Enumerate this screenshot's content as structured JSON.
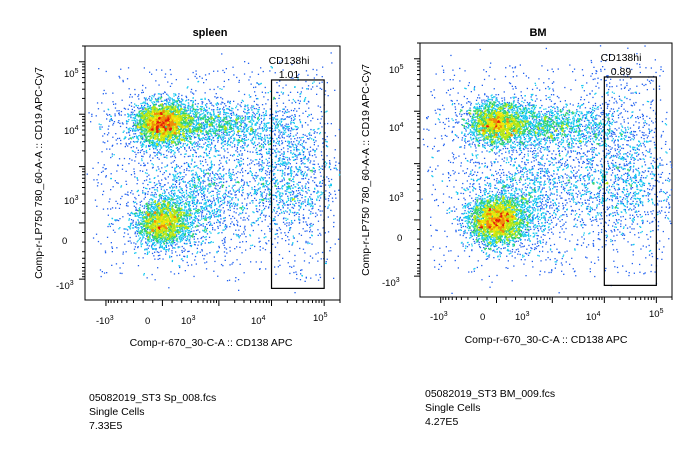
{
  "chart_data": [
    {
      "type": "scatter",
      "title": "spleen",
      "xlabel": "Comp-r-670_30-C-A :: CD138 APC",
      "ylabel": "Comp-r-LP750 780_60-A-A :: CD19 APC-Cy7",
      "x_scale": "biexponential",
      "y_scale": "biexponential",
      "x_ticks": [
        "-10³",
        "0",
        "10³",
        "10⁴",
        "10⁵"
      ],
      "y_ticks": [
        "10⁵",
        "10⁴",
        "10³",
        "0",
        "-10³"
      ],
      "density_colormap": [
        "#1a1adb",
        "#14c8f0",
        "#32d26e",
        "#f0e60a",
        "#e61a0a"
      ],
      "populations": [
        {
          "x": 0,
          "y": 7000,
          "density": "high"
        },
        {
          "x": 0,
          "y": 0,
          "density": "medium"
        },
        {
          "x": 20000,
          "y": 1500,
          "density": "low"
        }
      ],
      "gate": {
        "name": "CD138hi",
        "percent": "1.01",
        "x_range": [
          10000,
          100000
        ],
        "y_range": [
          -1500,
          45000
        ]
      },
      "file": "05082019_ST3 Sp_008.fcs",
      "population": "Single Cells",
      "count": "7.33E5"
    },
    {
      "type": "scatter",
      "title": "BM",
      "xlabel": "Comp-r-670_30-C-A :: CD138 APC",
      "ylabel": "Comp-r-LP750 780_60-A-A :: CD19 APC-Cy7",
      "x_scale": "biexponential",
      "y_scale": "biexponential",
      "x_ticks": [
        "-10³",
        "0",
        "10³",
        "10⁴",
        "10⁵"
      ],
      "y_ticks": [
        "10⁵",
        "10⁴",
        "10³",
        "0",
        "-10³"
      ],
      "density_colormap": [
        "#1a1adb",
        "#14c8f0",
        "#32d26e",
        "#f0e60a",
        "#e61a0a"
      ],
      "populations": [
        {
          "x": 0,
          "y": 6000,
          "density": "medium"
        },
        {
          "x": 0,
          "y": 0,
          "density": "high"
        },
        {
          "x": 20000,
          "y": 1500,
          "density": "low"
        }
      ],
      "gate": {
        "name": "CD138hi",
        "percent": "0.89",
        "x_range": [
          10000,
          100000
        ],
        "y_range": [
          -1500,
          45000
        ]
      },
      "file": "05082019_ST3 BM_009.fcs",
      "population": "Single Cells",
      "count": "4.27E5"
    }
  ]
}
